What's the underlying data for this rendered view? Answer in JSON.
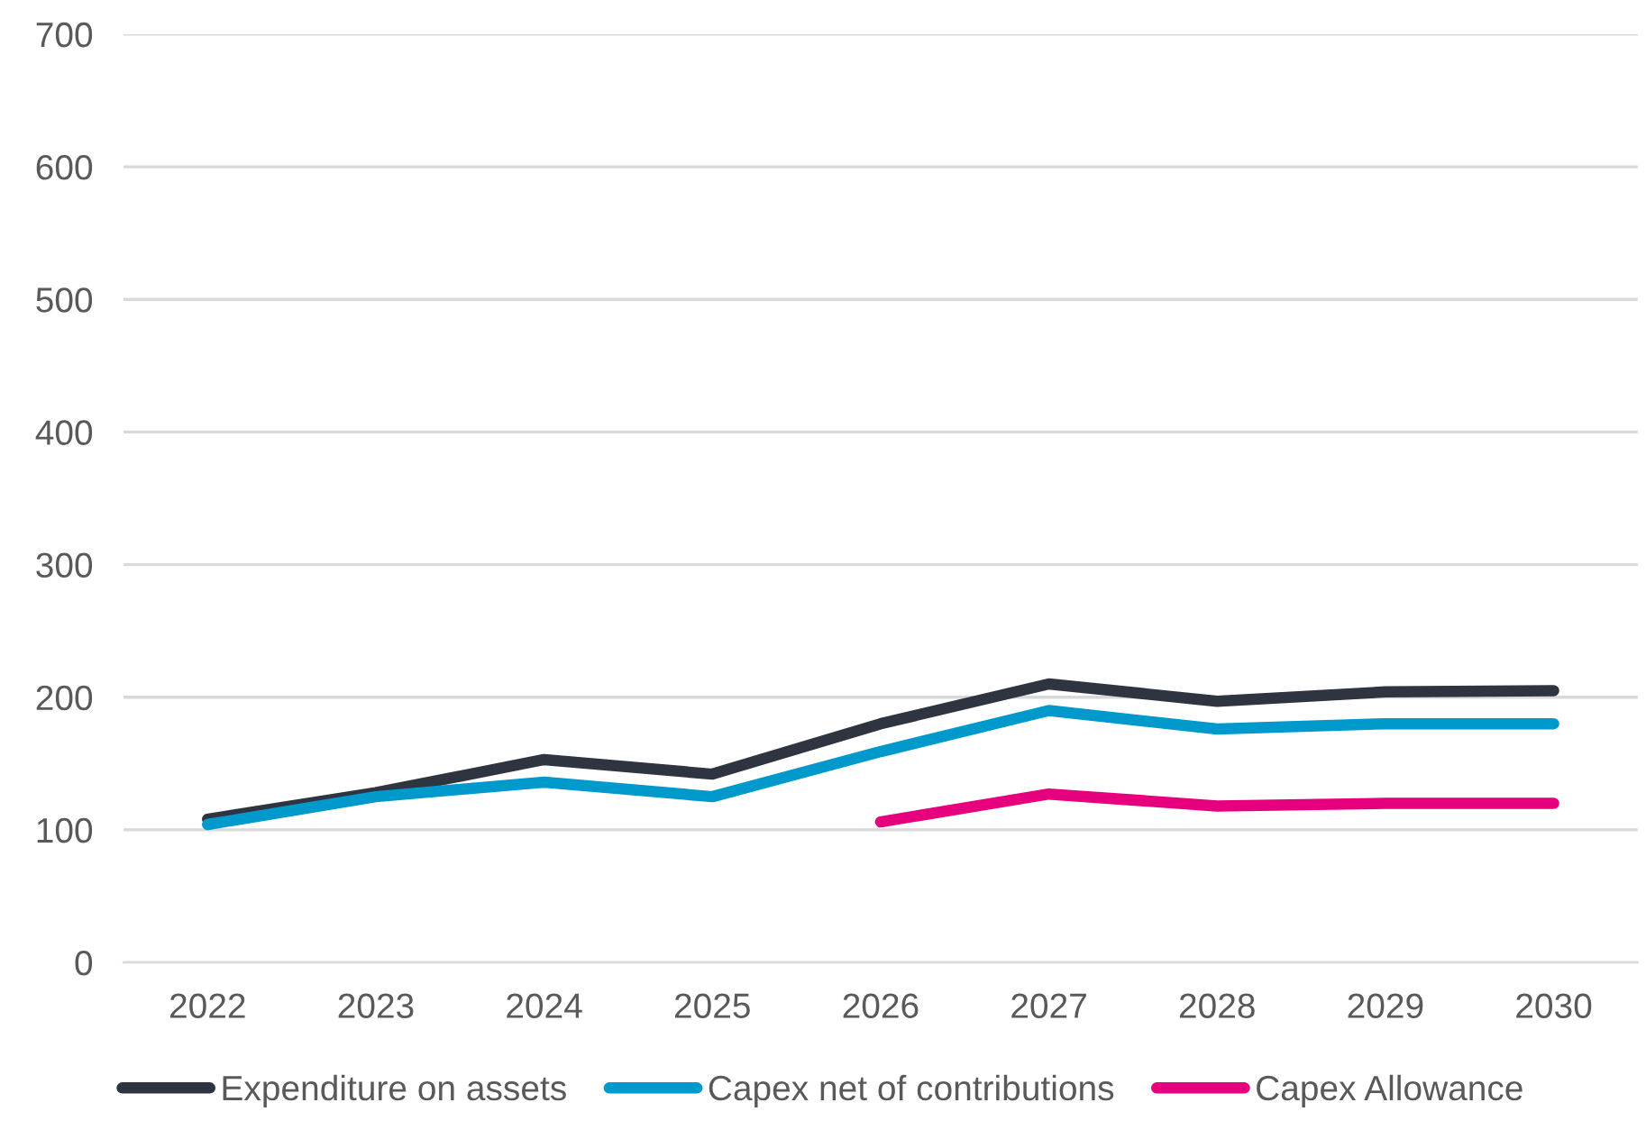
{
  "chart_data": {
    "type": "line",
    "categories": [
      "2022",
      "2023",
      "2024",
      "2025",
      "2026",
      "2027",
      "2028",
      "2029",
      "2030"
    ],
    "series": [
      {
        "name": "Expenditure on assets",
        "color": "#2e3440",
        "values": [
          108,
          128,
          153,
          142,
          180,
          210,
          197,
          204,
          205
        ]
      },
      {
        "name": "Capex net of contributions",
        "color": "#0099cc",
        "values": [
          104,
          125,
          136,
          125,
          159,
          190,
          176,
          180,
          180
        ]
      },
      {
        "name": "Capex Allowance",
        "color": "#e6007e",
        "values": [
          null,
          null,
          null,
          null,
          106,
          127,
          118,
          120,
          120
        ]
      }
    ],
    "ylim": [
      0,
      700
    ],
    "yticks": [
      0,
      100,
      200,
      300,
      400,
      500,
      600,
      700
    ],
    "grid": "y",
    "legend": "bottom",
    "marker": "none",
    "line_style": "solid"
  }
}
